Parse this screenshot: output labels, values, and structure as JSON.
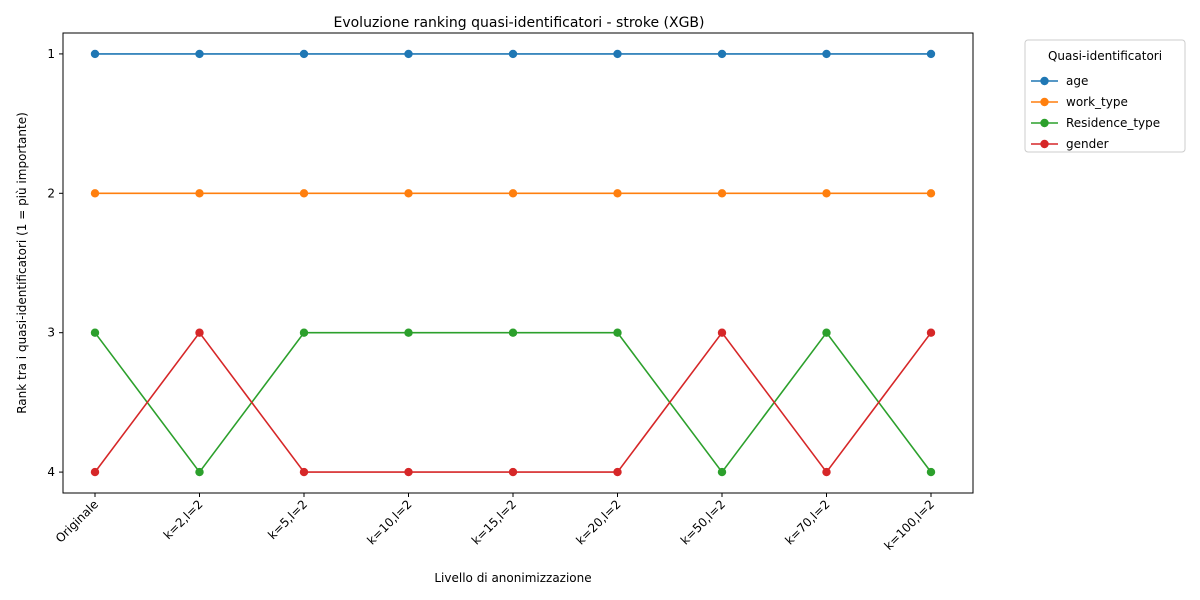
{
  "chart_data": {
    "type": "line",
    "title": "Evoluzione ranking quasi-identificatori - stroke (XGB)",
    "xlabel": "Livello di anonimizzazione",
    "ylabel": "Rank tra i quasi-identificatori (1 = più importante)",
    "categories": [
      "Originale",
      "k=2,l=2",
      "k=5,l=2",
      "k=10,l=2",
      "k=15,l=2",
      "k=20,l=2",
      "k=50,l=2",
      "k=70,l=2",
      "k=100,l=2"
    ],
    "y_ticks": [
      1,
      2,
      3,
      4
    ],
    "ylim": [
      4.15,
      0.85
    ],
    "y_inverted": true,
    "grid": false,
    "legend": {
      "title": "Quasi-identificatori",
      "placement": "outside upper right"
    },
    "series": [
      {
        "name": "age",
        "color": "#1f77b4",
        "values": [
          1,
          1,
          1,
          1,
          1,
          1,
          1,
          1,
          1
        ]
      },
      {
        "name": "work_type",
        "color": "#ff7f0e",
        "values": [
          2,
          2,
          2,
          2,
          2,
          2,
          2,
          2,
          2
        ]
      },
      {
        "name": "Residence_type",
        "color": "#2ca02c",
        "values": [
          3,
          4,
          3,
          3,
          3,
          3,
          4,
          3,
          4
        ]
      },
      {
        "name": "gender",
        "color": "#d62728",
        "values": [
          4,
          3,
          4,
          4,
          4,
          4,
          3,
          4,
          3
        ]
      }
    ]
  }
}
